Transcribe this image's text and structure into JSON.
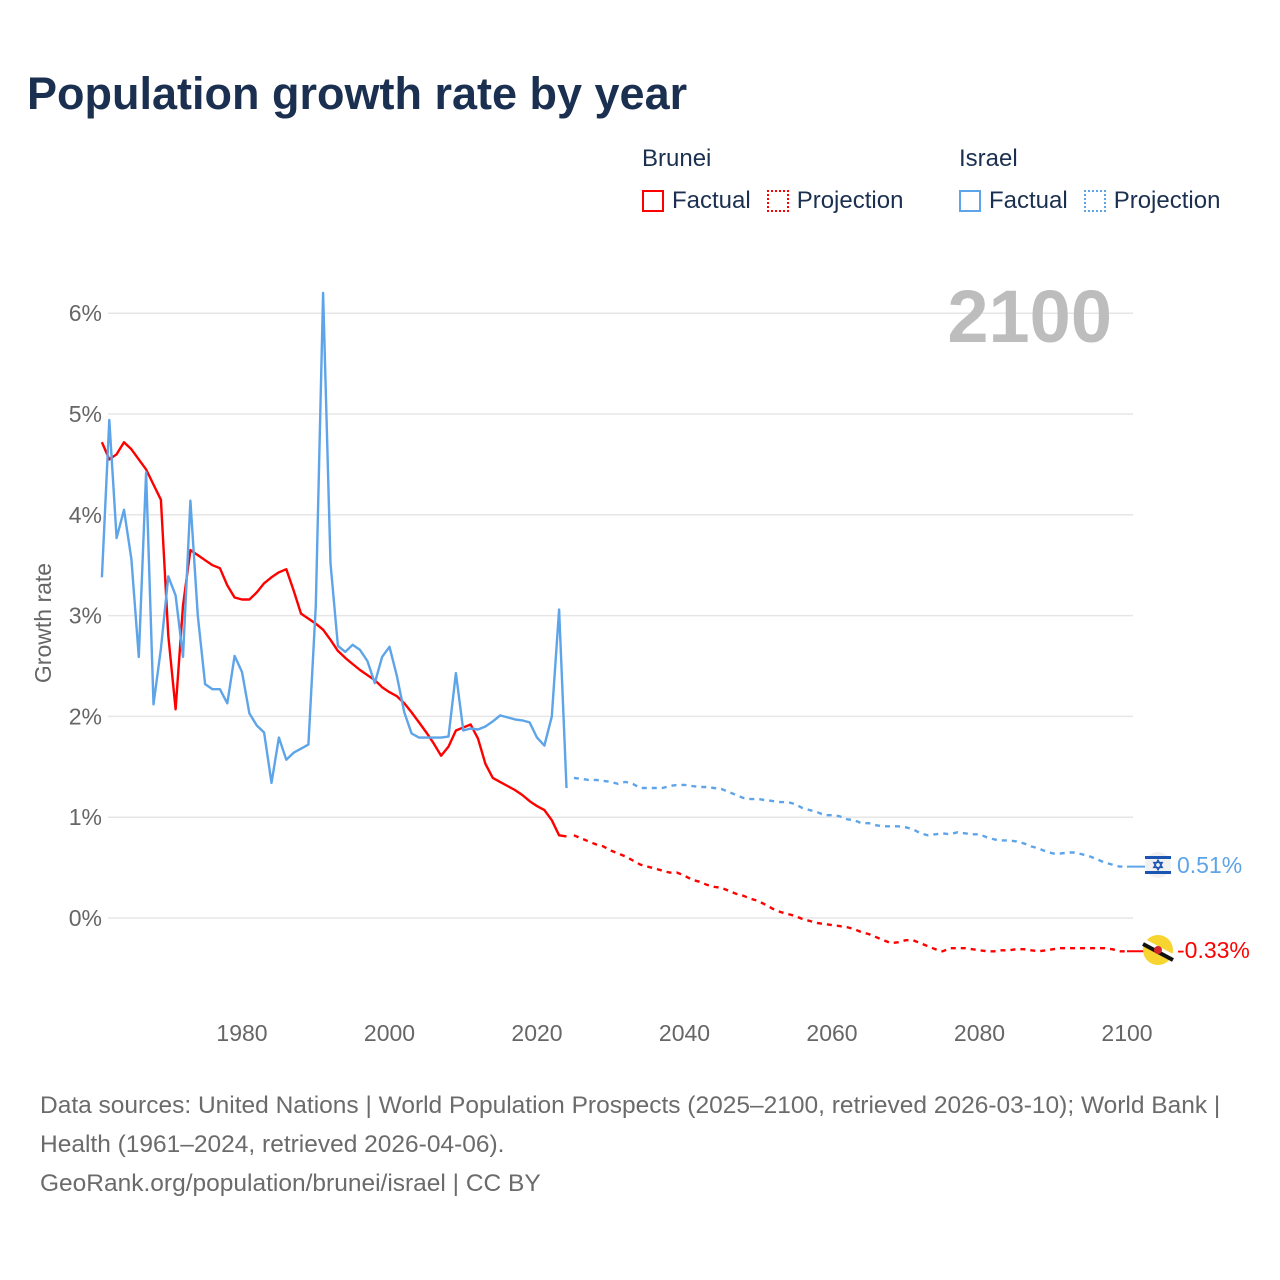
{
  "title": "Population growth rate by year",
  "legend": {
    "groups": [
      {
        "country": "Brunei",
        "color": "#ff0000",
        "factual": "Factual",
        "projection": "Projection"
      },
      {
        "country": "Israel",
        "color": "#5ea4e8",
        "factual": "Factual",
        "projection": "Projection"
      }
    ]
  },
  "year_label": "2100",
  "footer": {
    "sources": "Data sources: United Nations | World Population Prospects (2025–2100, retrieved 2026-03-10); World Bank | Health (1961–2024, retrieved 2026-04-06).",
    "link": "GeoRank.org/population/brunei/israel | CC BY"
  },
  "chart_data": {
    "type": "line",
    "title": "Population growth rate by year",
    "xlabel": "",
    "ylabel": "Growth rate",
    "xlim": [
      1960,
      2100
    ],
    "ylim": [
      -0.9,
      6.3
    ],
    "x_ticks": [
      1980,
      2000,
      2020,
      2040,
      2060,
      2080,
      2100
    ],
    "y_ticks": [
      0,
      1,
      2,
      3,
      4,
      5,
      6
    ],
    "y_tick_labels": [
      "0%",
      "1%",
      "2%",
      "3%",
      "4%",
      "5%",
      "6%"
    ],
    "grid": "horizontal",
    "legend_position": "top-right",
    "series": [
      {
        "name": "Brunei Factual",
        "color": "#ff0000",
        "style": "solid",
        "x_start": 1961,
        "values": [
          4.72,
          4.55,
          4.6,
          4.72,
          4.65,
          4.55,
          4.45,
          4.3,
          4.15,
          2.8,
          2.07,
          3.1,
          3.65,
          3.6,
          3.55,
          3.5,
          3.47,
          3.3,
          3.18,
          3.16,
          3.16,
          3.23,
          3.32,
          3.38,
          3.43,
          3.46,
          3.25,
          3.02,
          2.97,
          2.92,
          2.86,
          2.76,
          2.65,
          2.58,
          2.52,
          2.46,
          2.41,
          2.36,
          2.29,
          2.24,
          2.2,
          2.13,
          2.04,
          1.94,
          1.84,
          1.73,
          1.61,
          1.7,
          1.86,
          1.89,
          1.92,
          1.78,
          1.53,
          1.39,
          1.35,
          1.31,
          1.27,
          1.22,
          1.16,
          1.11,
          1.07,
          0.97,
          0.82,
          0.81
        ]
      },
      {
        "name": "Brunei Projection",
        "color": "#ff0000",
        "style": "dotted",
        "x_start": 2025,
        "values": [
          0.82,
          0.79,
          0.76,
          0.73,
          0.71,
          0.67,
          0.64,
          0.61,
          0.57,
          0.53,
          0.51,
          0.49,
          0.47,
          0.45,
          0.45,
          0.42,
          0.38,
          0.36,
          0.33,
          0.31,
          0.3,
          0.27,
          0.24,
          0.22,
          0.19,
          0.17,
          0.13,
          0.09,
          0.06,
          0.04,
          0.02,
          -0.01,
          -0.03,
          -0.05,
          -0.06,
          -0.07,
          -0.08,
          -0.09,
          -0.11,
          -0.14,
          -0.16,
          -0.19,
          -0.22,
          -0.25,
          -0.24,
          -0.22,
          -0.22,
          -0.25,
          -0.28,
          -0.31,
          -0.33,
          -0.3,
          -0.3,
          -0.3,
          -0.31,
          -0.32,
          -0.33,
          -0.33,
          -0.32,
          -0.32,
          -0.31,
          -0.31,
          -0.32,
          -0.33,
          -0.32,
          -0.31,
          -0.3,
          -0.3,
          -0.3,
          -0.3,
          -0.3,
          -0.3,
          -0.3,
          -0.31,
          -0.33,
          -0.33
        ]
      },
      {
        "name": "Israel Factual",
        "color": "#5ea4e8",
        "style": "solid",
        "x_start": 1961,
        "values": [
          3.38,
          4.94,
          3.77,
          4.05,
          3.56,
          2.59,
          4.42,
          2.12,
          2.67,
          3.39,
          3.2,
          2.59,
          4.14,
          3.0,
          2.32,
          2.27,
          2.27,
          2.13,
          2.6,
          2.44,
          2.03,
          1.91,
          1.84,
          1.34,
          1.79,
          1.57,
          1.64,
          1.68,
          1.72,
          3.1,
          6.2,
          3.52,
          2.7,
          2.64,
          2.71,
          2.66,
          2.55,
          2.33,
          2.59,
          2.69,
          2.4,
          2.04,
          1.83,
          1.79,
          1.79,
          1.79,
          1.79,
          1.8,
          2.43,
          1.86,
          1.88,
          1.87,
          1.9,
          1.95,
          2.01,
          1.99,
          1.97,
          1.96,
          1.94,
          1.79,
          1.71,
          2.0,
          3.06,
          1.29
        ]
      },
      {
        "name": "Israel Projection",
        "color": "#5ea4e8",
        "style": "dotted",
        "x_start": 2025,
        "values": [
          1.39,
          1.38,
          1.37,
          1.37,
          1.36,
          1.35,
          1.33,
          1.35,
          1.33,
          1.29,
          1.29,
          1.29,
          1.29,
          1.31,
          1.32,
          1.32,
          1.31,
          1.3,
          1.3,
          1.29,
          1.28,
          1.25,
          1.22,
          1.19,
          1.18,
          1.18,
          1.17,
          1.16,
          1.15,
          1.15,
          1.13,
          1.09,
          1.07,
          1.05,
          1.02,
          1.02,
          1.01,
          0.98,
          0.97,
          0.94,
          0.94,
          0.92,
          0.91,
          0.91,
          0.91,
          0.9,
          0.88,
          0.84,
          0.82,
          0.83,
          0.84,
          0.83,
          0.85,
          0.84,
          0.83,
          0.83,
          0.8,
          0.78,
          0.77,
          0.77,
          0.76,
          0.74,
          0.71,
          0.69,
          0.66,
          0.64,
          0.64,
          0.65,
          0.65,
          0.63,
          0.61,
          0.58,
          0.55,
          0.53,
          0.51,
          0.51
        ]
      }
    ],
    "end_labels": [
      {
        "country": "Israel",
        "text": "0.51%",
        "color": "#5ea4e8",
        "value": 0.51
      },
      {
        "country": "Brunei",
        "text": "-0.33%",
        "color": "#ff0000",
        "value": -0.33
      }
    ]
  }
}
